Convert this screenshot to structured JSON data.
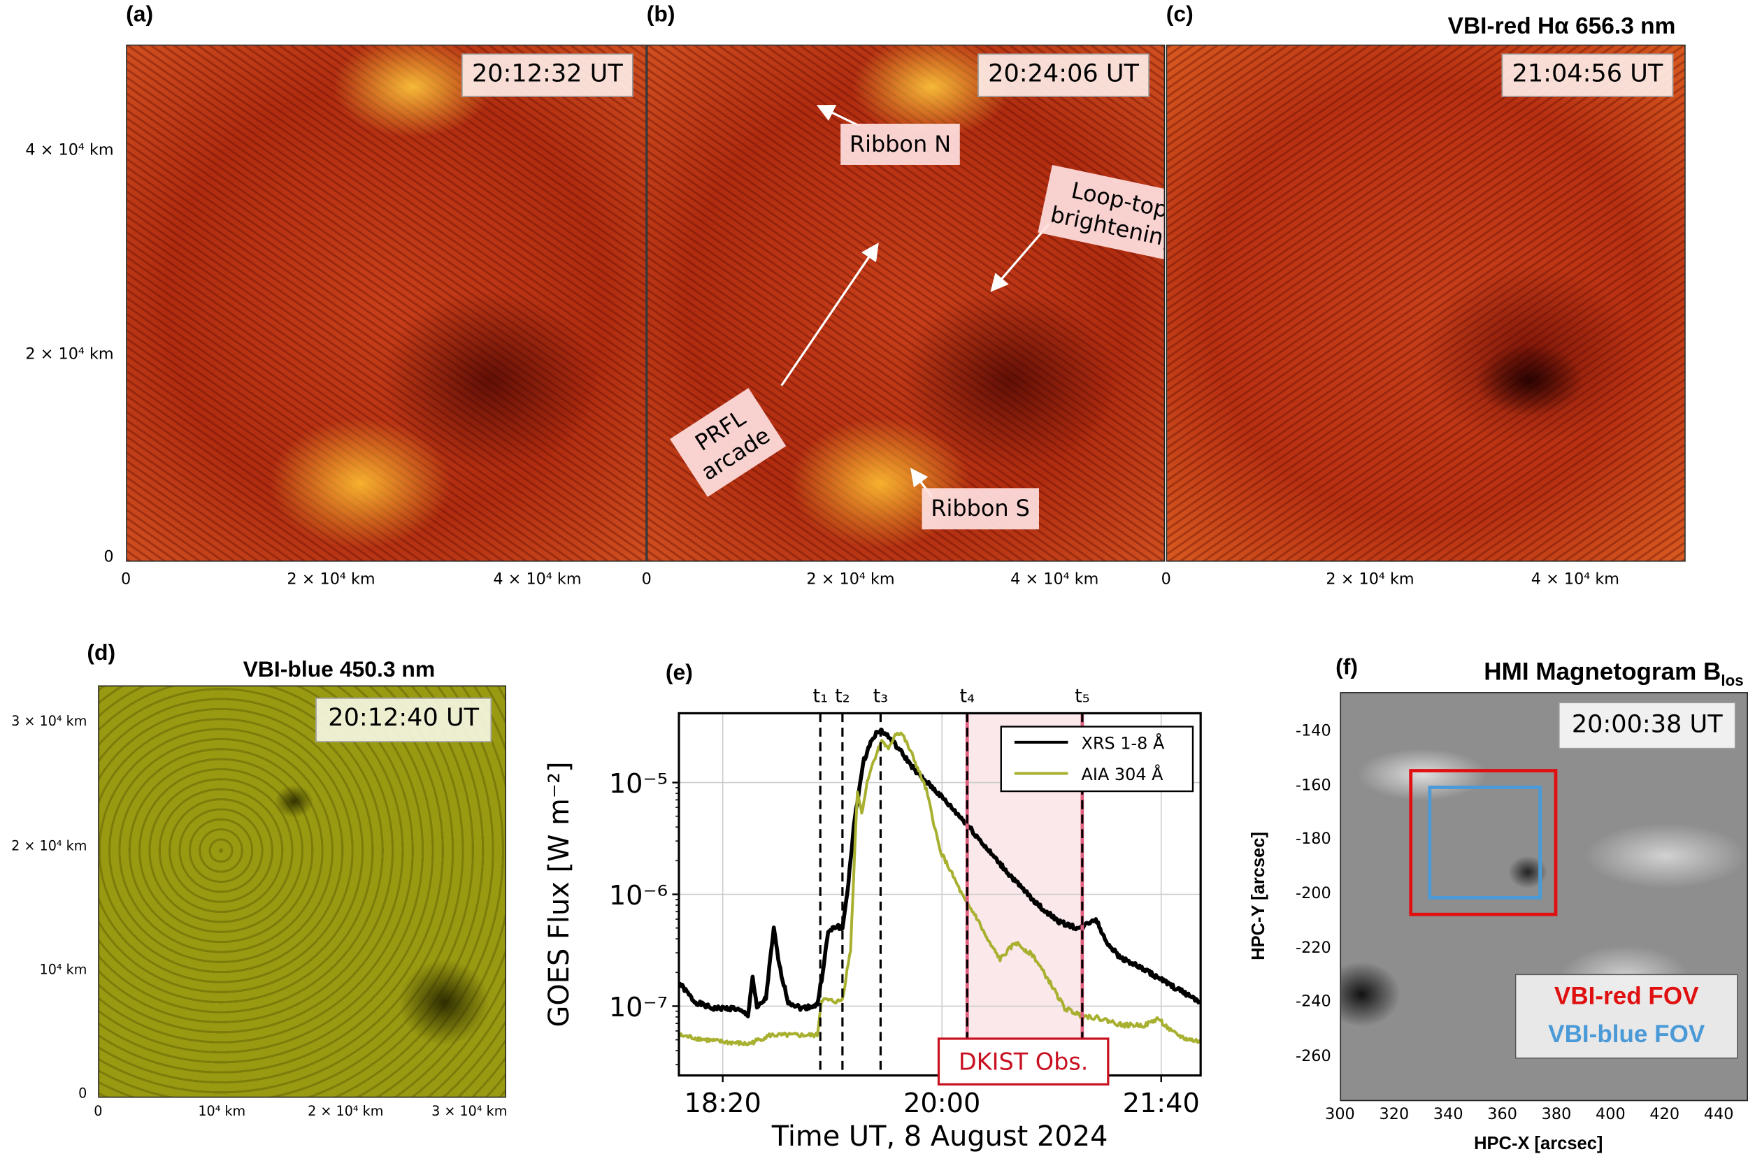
{
  "panels": {
    "a": {
      "label": "(a)",
      "time": "20:12:32 UT"
    },
    "b": {
      "label": "(b)",
      "time": "20:24:06 UT",
      "annotations": {
        "ribbon_n": "Ribbon N",
        "loop_top_1": "Loop-top",
        "loop_top_2": "brightening",
        "prfl_1": "PRFL",
        "prfl_2": "arcade",
        "ribbon_s": "Ribbon S"
      }
    },
    "c": {
      "label": "(c)",
      "time": "21:04:56 UT",
      "title": "VBI-red Hα 656.3 nm"
    },
    "red_axes": {
      "y_ticks": [
        "4 × 10⁴ km",
        "2 × 10⁴ km",
        "0"
      ],
      "x_ticks": [
        "0",
        "2 × 10⁴ km",
        "4 × 10⁴ km"
      ]
    },
    "d": {
      "label": "(d)",
      "title": "VBI-blue 450.3 nm",
      "time": "20:12:40 UT",
      "y_ticks": [
        "3 × 10⁴ km",
        "2 × 10⁴ km",
        "10⁴ km",
        "0"
      ],
      "x_ticks": [
        "0",
        "10⁴ km",
        "2 × 10⁴ km",
        "3 × 10⁴ km"
      ]
    },
    "f": {
      "label": "(f)",
      "title": "HMI Magnetogram B",
      "title_sub": "los",
      "time": "20:00:38 UT",
      "xlabel": "HPC-X [arcsec]",
      "ylabel": "HPC-Y [arcsec]",
      "x_ticks": [
        "300",
        "320",
        "340",
        "360",
        "380",
        "400",
        "420",
        "440"
      ],
      "y_ticks": [
        "-140",
        "-160",
        "-180",
        "-200",
        "-220",
        "-240",
        "-260"
      ],
      "legend": {
        "red": "VBI-red FOV",
        "blue": "VBI-blue FOV"
      },
      "colors": {
        "red": "#e01010",
        "blue": "#4a9ad8"
      },
      "fov_red": {
        "x": [
          325,
          380
        ],
        "y": [
          -207,
          -153
        ]
      },
      "fov_blue": {
        "x": [
          332,
          374
        ],
        "y": [
          -201,
          -159
        ]
      },
      "xlim": [
        300,
        450
      ],
      "ylim": [
        -275,
        -125
      ]
    }
  },
  "chart_data": {
    "type": "line",
    "panel_label": "(e)",
    "xlabel": "Time UT, 8 August 2024",
    "ylabel": "GOES Flux [W m⁻²]",
    "x_unit": "minutes after 18:00 UT",
    "y_scale": "log10",
    "xlim": [
      0,
      238
    ],
    "ylim_log10": [
      -7.62,
      -4.38
    ],
    "x_ticks": [
      {
        "value": 20,
        "label": "18:20"
      },
      {
        "value": 120,
        "label": "20:00"
      },
      {
        "value": 220,
        "label": "21:40"
      }
    ],
    "y_ticks": [
      {
        "value": -5,
        "label": "10⁻⁵"
      },
      {
        "value": -6,
        "label": "10⁻⁶"
      },
      {
        "value": -7,
        "label": "10⁻⁷"
      }
    ],
    "grid": true,
    "legend_position": "top-right",
    "markers": [
      {
        "label": "t₁",
        "x": 64.5
      },
      {
        "label": "t₂",
        "x": 74.6
      },
      {
        "label": "t₃",
        "x": 92
      },
      {
        "label": "t₄",
        "x": 131.5
      },
      {
        "label": "t₅",
        "x": 184
      }
    ],
    "shaded": {
      "from": 131.5,
      "to": 184,
      "label": "DKIST Obs.",
      "color": "#fbe8ea",
      "edge": "#e06080"
    },
    "series": [
      {
        "name": "XRS 1-8 Å",
        "color": "#000000",
        "points": [
          [
            0,
            -6.79
          ],
          [
            7.1,
            -6.96
          ],
          [
            15.3,
            -7.02
          ],
          [
            25.4,
            -7.02
          ],
          [
            31.5,
            -7.08
          ],
          [
            33.6,
            -6.74
          ],
          [
            35.6,
            -7.02
          ],
          [
            39.7,
            -6.93
          ],
          [
            41.7,
            -6.58
          ],
          [
            43.3,
            -6.31
          ],
          [
            45.8,
            -6.64
          ],
          [
            49.8,
            -6.96
          ],
          [
            55.9,
            -7.02
          ],
          [
            63.1,
            -6.99
          ],
          [
            65.1,
            -6.76
          ],
          [
            68.1,
            -6.34
          ],
          [
            72.2,
            -6.28
          ],
          [
            74.6,
            -6.31
          ],
          [
            77.3,
            -5.9
          ],
          [
            80.3,
            -5.3
          ],
          [
            84.4,
            -4.8
          ],
          [
            88.5,
            -4.59
          ],
          [
            91.9,
            -4.53
          ],
          [
            95.6,
            -4.59
          ],
          [
            100.7,
            -4.71
          ],
          [
            108.8,
            -4.92
          ],
          [
            117,
            -5.07
          ],
          [
            130.8,
            -5.36
          ],
          [
            143.4,
            -5.66
          ],
          [
            155.6,
            -5.93
          ],
          [
            165.8,
            -6.13
          ],
          [
            173.9,
            -6.25
          ],
          [
            183.1,
            -6.31
          ],
          [
            187.1,
            -6.25
          ],
          [
            190.2,
            -6.22
          ],
          [
            194.3,
            -6.4
          ],
          [
            200.3,
            -6.55
          ],
          [
            214.6,
            -6.7
          ],
          [
            224.8,
            -6.82
          ],
          [
            238,
            -6.96
          ]
        ]
      },
      {
        "name": "AIA 304 Å",
        "color": "#a8b030",
        "points": [
          [
            0,
            -7.26
          ],
          [
            15.3,
            -7.31
          ],
          [
            31.5,
            -7.34
          ],
          [
            41.7,
            -7.26
          ],
          [
            51.9,
            -7.26
          ],
          [
            63.1,
            -7.26
          ],
          [
            65.1,
            -6.94
          ],
          [
            72.2,
            -6.96
          ],
          [
            74.6,
            -6.94
          ],
          [
            78.3,
            -6.49
          ],
          [
            81.4,
            -5.07
          ],
          [
            83.4,
            -5.27
          ],
          [
            86.4,
            -4.95
          ],
          [
            89.5,
            -4.77
          ],
          [
            92.6,
            -4.62
          ],
          [
            95.6,
            -4.71
          ],
          [
            98.7,
            -4.56
          ],
          [
            101.7,
            -4.56
          ],
          [
            106.8,
            -4.77
          ],
          [
            112.9,
            -5.07
          ],
          [
            119,
            -5.6
          ],
          [
            125.1,
            -5.84
          ],
          [
            130.8,
            -6.07
          ],
          [
            135.3,
            -6.19
          ],
          [
            141.4,
            -6.43
          ],
          [
            146.5,
            -6.58
          ],
          [
            153.6,
            -6.43
          ],
          [
            161.7,
            -6.55
          ],
          [
            169.9,
            -6.81
          ],
          [
            176,
            -7.02
          ],
          [
            183.1,
            -7.08
          ],
          [
            192.2,
            -7.11
          ],
          [
            202.4,
            -7.17
          ],
          [
            212.6,
            -7.17
          ],
          [
            218.7,
            -7.11
          ],
          [
            224.8,
            -7.23
          ],
          [
            230.9,
            -7.29
          ],
          [
            238,
            -7.32
          ]
        ]
      }
    ]
  }
}
